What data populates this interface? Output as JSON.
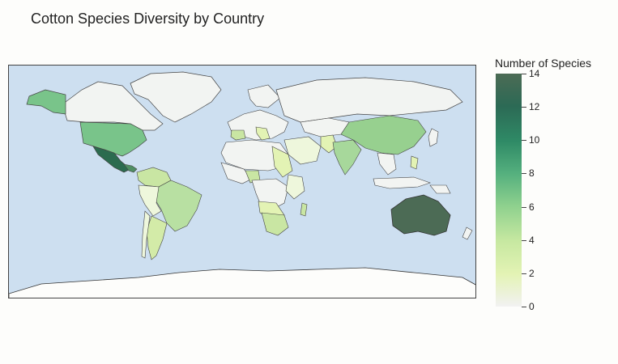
{
  "title": "Cotton Species Diversity by Country",
  "legend": {
    "title": "Number of Species",
    "ticks": [
      "14",
      "12",
      "10",
      "8",
      "6",
      "4",
      "2",
      "0"
    ],
    "min": 0,
    "max": 14,
    "colors": [
      "#f2f2f2",
      "#e3f3b4",
      "#c7e8a1",
      "#8fd18e",
      "#55b07e",
      "#2f8a66",
      "#2c6a55",
      "#4c6b55"
    ]
  },
  "map": {
    "ocean_color": "#cddff0",
    "land_default": "#f2f4f2",
    "border_color": "#444444"
  }
}
